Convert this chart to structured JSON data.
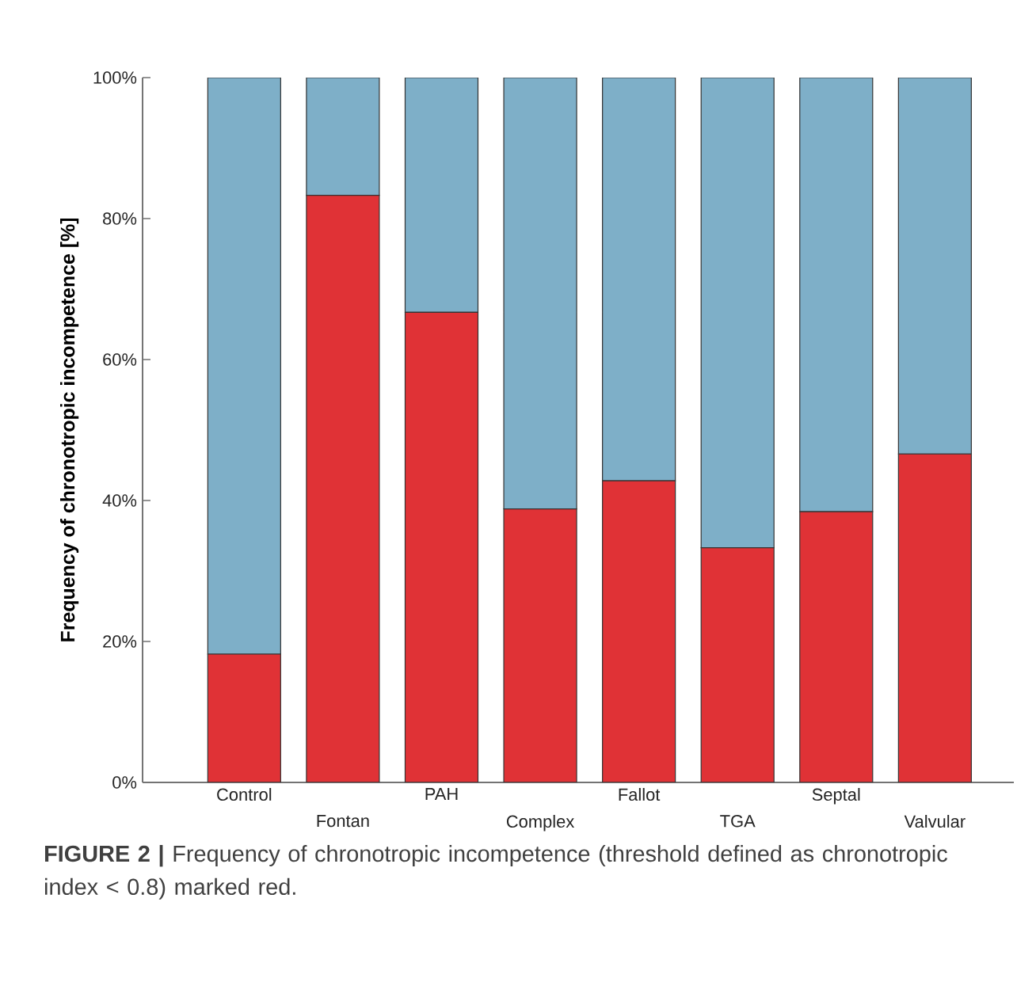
{
  "chart_data": {
    "type": "bar",
    "stacked": true,
    "ylabel": "Frequency of chronotropic incompetence [%]",
    "categories": [
      "Control",
      "Fontan",
      "PAH",
      "Complex",
      "Fallot",
      "TGA",
      "Septal",
      "Valvular"
    ],
    "series": [
      {
        "color": "#e03236",
        "values": [
          18.2,
          83.3,
          66.7,
          38.8,
          42.8,
          33.3,
          38.4,
          46.6
        ]
      },
      {
        "color": "#7eafc8",
        "values": [
          81.8,
          16.7,
          33.3,
          61.2,
          57.2,
          66.7,
          61.6,
          53.4
        ]
      }
    ],
    "ylim": [
      0,
      100
    ],
    "yticks": [
      {
        "value": 0,
        "label": "0%"
      },
      {
        "value": 20,
        "label": "20%"
      },
      {
        "value": 40,
        "label": "40%"
      },
      {
        "value": 60,
        "label": "60%"
      },
      {
        "value": 80,
        "label": "80%"
      },
      {
        "value": 100,
        "label": "100%"
      }
    ],
    "annotations": [
      "**FIGURE 2 |** Frequency of chronotropic incompetence (threshold defined as chronotropic index < 0.8) marked red."
    ]
  }
}
